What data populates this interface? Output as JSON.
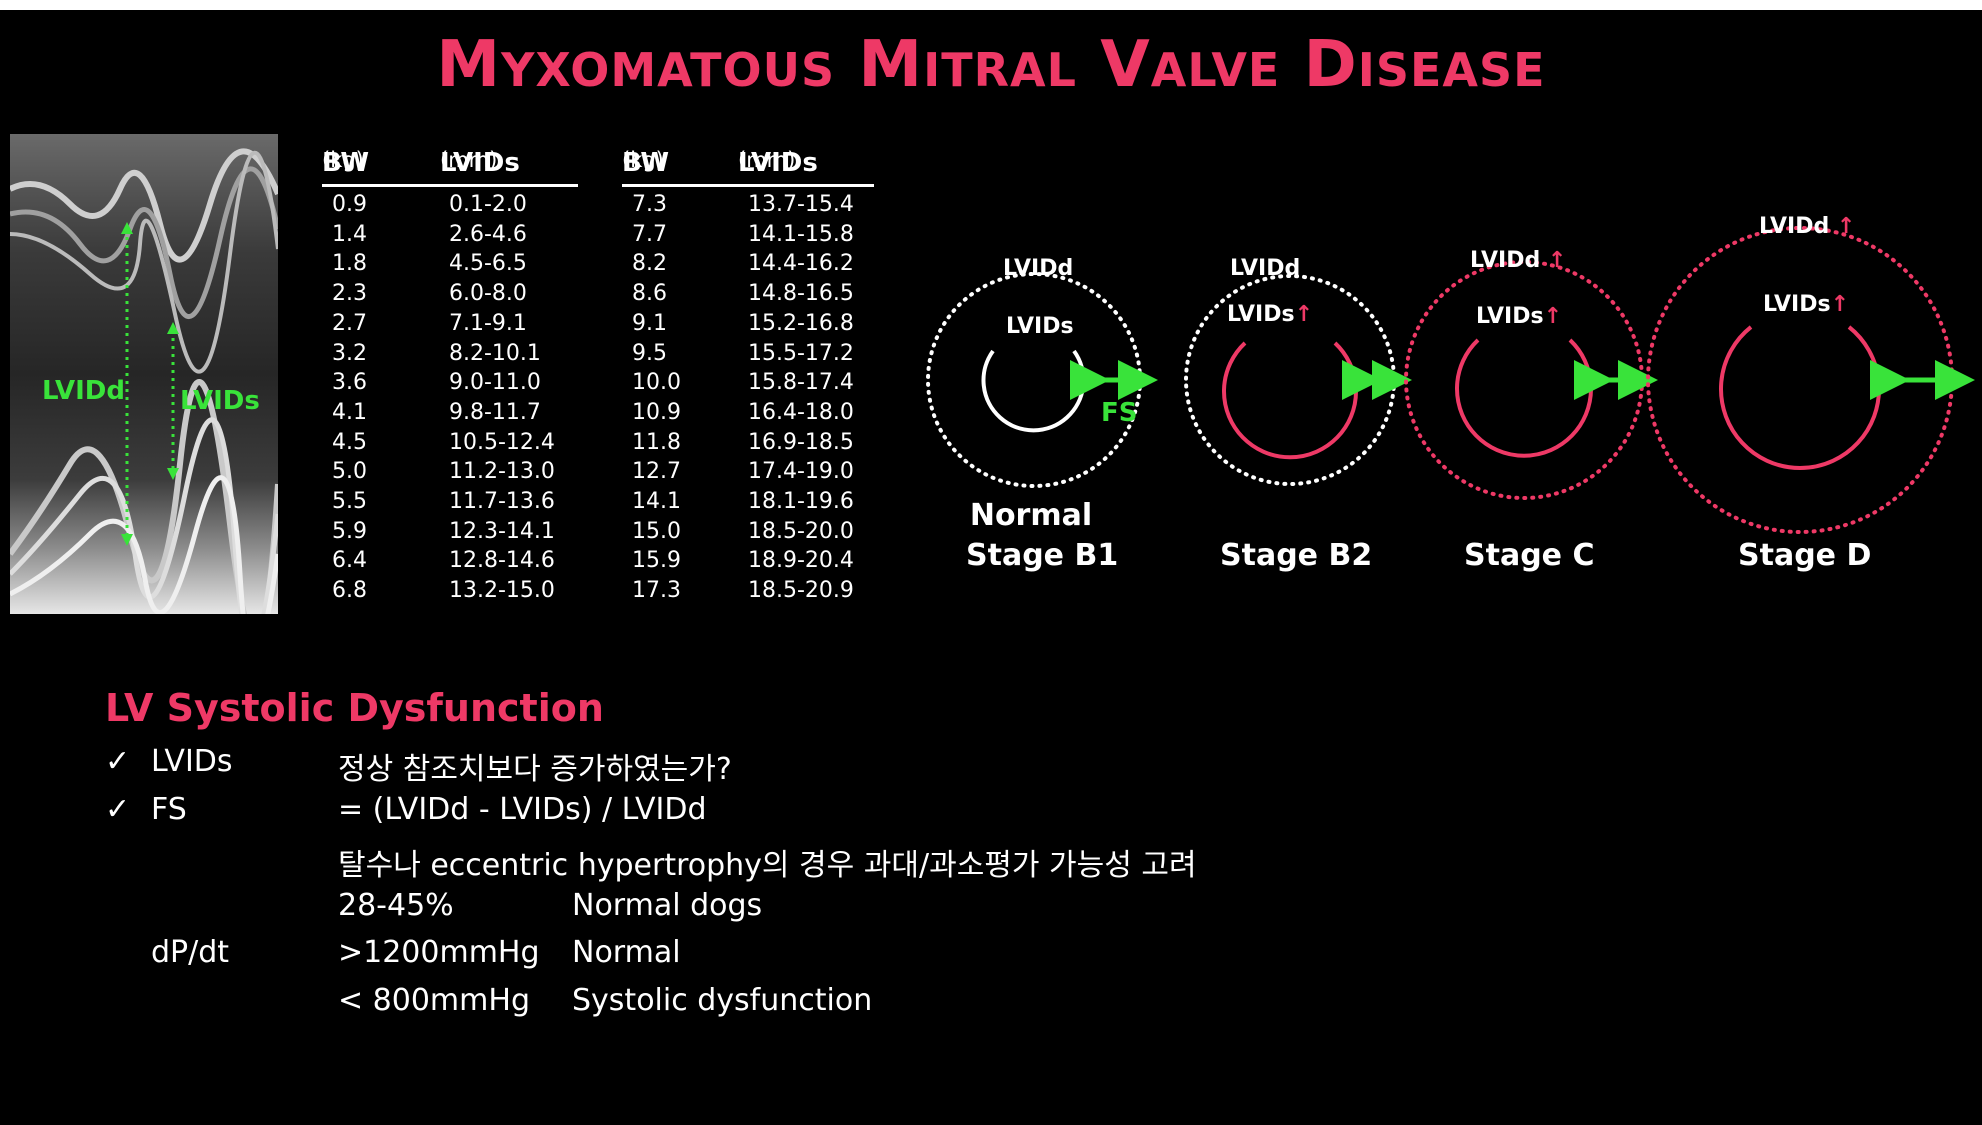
{
  "title": {
    "parts": [
      {
        "cap": "M",
        "rest": "YXOMATOUS"
      },
      {
        "cap": "M",
        "rest": "ITRAL"
      },
      {
        "cap": "V",
        "rest": "ALVE"
      },
      {
        "cap": "D",
        "rest": "ISEASE"
      }
    ]
  },
  "image": {
    "lvidd_label": "LVIDd",
    "lvids_label": "LVIDs"
  },
  "table": {
    "headers": {
      "bw": "BW",
      "bw_unit": "(kg)",
      "lvids": "LVIDs",
      "lvids_unit": "(mm)"
    },
    "left": [
      [
        "0.9",
        "0.1-2.0"
      ],
      [
        "1.4",
        "2.6-4.6"
      ],
      [
        "1.8",
        "4.5-6.5"
      ],
      [
        "2.3",
        "6.0-8.0"
      ],
      [
        "2.7",
        "7.1-9.1"
      ],
      [
        "3.2",
        "8.2-10.1"
      ],
      [
        "3.6",
        "9.0-11.0"
      ],
      [
        "4.1",
        "9.8-11.7"
      ],
      [
        "4.5",
        "10.5-12.4"
      ],
      [
        "5.0",
        "11.2-13.0"
      ],
      [
        "5.5",
        "11.7-13.6"
      ],
      [
        "5.9",
        "12.3-14.1"
      ],
      [
        "6.4",
        "12.8-14.6"
      ],
      [
        "6.8",
        "13.2-15.0"
      ]
    ],
    "right": [
      [
        "7.3",
        "13.7-15.4"
      ],
      [
        "7.7",
        "14.1-15.8"
      ],
      [
        "8.2",
        "14.4-16.2"
      ],
      [
        "8.6",
        "14.8-16.5"
      ],
      [
        "9.1",
        "15.2-16.8"
      ],
      [
        "9.5",
        "15.5-17.2"
      ],
      [
        "10.0",
        "15.8-17.4"
      ],
      [
        "10.9",
        "16.4-18.0"
      ],
      [
        "11.8",
        "16.9-18.5"
      ],
      [
        "12.7",
        "17.4-19.0"
      ],
      [
        "14.1",
        "18.1-19.6"
      ],
      [
        "15.0",
        "18.5-20.0"
      ],
      [
        "15.9",
        "18.9-20.4"
      ],
      [
        "17.3",
        "18.5-20.9"
      ]
    ]
  },
  "diagram": {
    "lvidd": "LVIDd",
    "lvids": "LVIDs",
    "fs": "FS",
    "up_arrow": "↑",
    "stages": {
      "normal_line1": "Normal",
      "normal_line2": "Stage B1",
      "b2": "Stage B2",
      "c": "Stage C",
      "d": "Stage D"
    }
  },
  "section": {
    "heading": "LV Systolic Dysfunction",
    "check": "✓",
    "lines": {
      "l1_label": "LVIDs",
      "l1_text": "정상 참조치보다 증가하였는가?",
      "l2_label": "FS",
      "l2_text": "= (LVIDd - LVIDs) / LVIDd",
      "l3_text": "탈수나 eccentric hypertrophy의 경우 과대/과소평가 가능성 고려",
      "l4_value": "28-45%",
      "l4_text": "Normal dogs",
      "l5_label": "dP/dt",
      "l5_value": ">1200mmHg",
      "l5_text": "Normal",
      "l6_value": "< 800mmHg",
      "l6_text": "Systolic dysfunction"
    }
  },
  "colors": {
    "accent": "#ee3966",
    "green": "#39e33a",
    "white": "#ffffff",
    "background": "#000000"
  }
}
